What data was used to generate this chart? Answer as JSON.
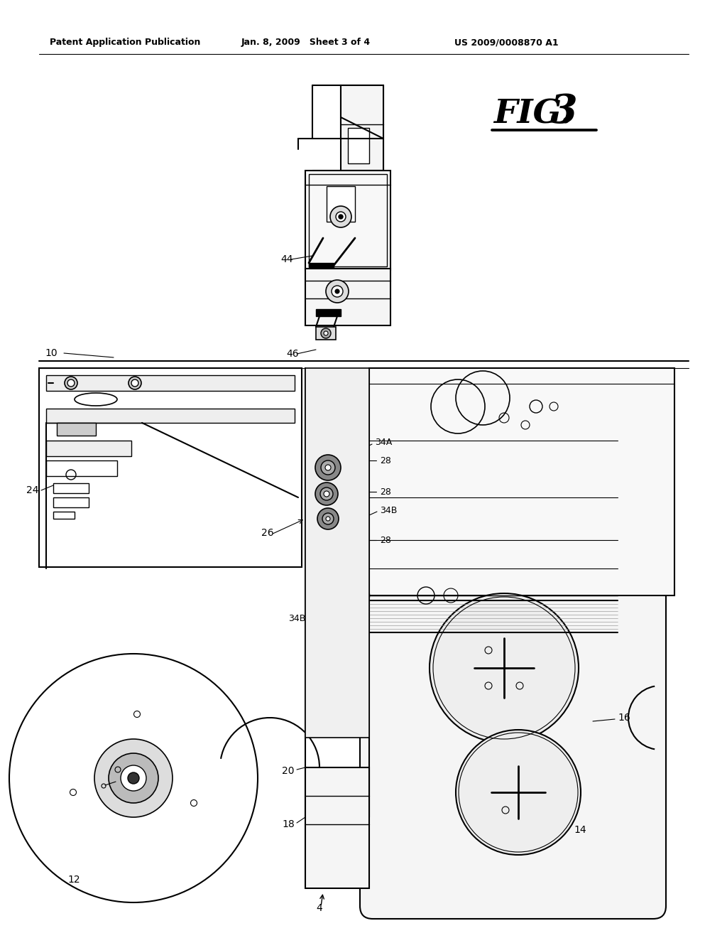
{
  "bg_color": "#ffffff",
  "header_left": "Patent Application Publication",
  "header_center": "Jan. 8, 2009   Sheet 3 of 4",
  "header_right": "US 2009/0008870 A1",
  "fig_label": "FIG.3"
}
